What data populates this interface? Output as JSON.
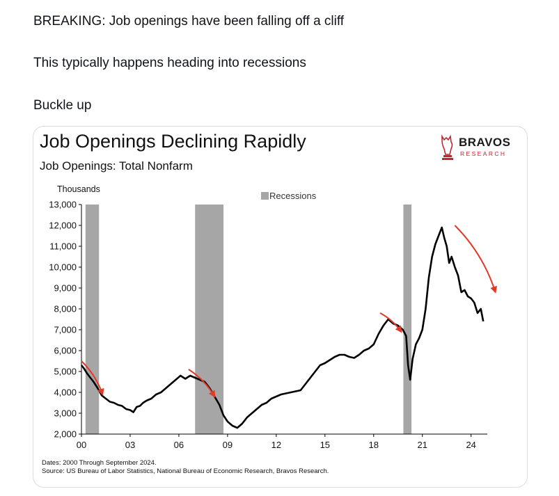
{
  "tweet": {
    "line1": "BREAKING: Job openings have been falling off a cliff",
    "line2": "This typically happens heading into recessions",
    "line3": "Buckle up"
  },
  "brand": {
    "name": "BRAVOS",
    "sub": "RESEARCH",
    "icon": "bull-chess-knight-icon",
    "color": "#c0262d"
  },
  "chart_data": {
    "type": "line",
    "title": "Job Openings Declining Rapidly",
    "subtitle": "Job Openings: Total Nonfarm",
    "ylabel": "Thousands",
    "ylim": [
      2000,
      13000
    ],
    "yticks": [
      2000,
      3000,
      4000,
      5000,
      6000,
      7000,
      8000,
      9000,
      10000,
      11000,
      12000,
      13000
    ],
    "ytick_labels": [
      "2,000",
      "3,000",
      "4,000",
      "5,000",
      "6,000",
      "7,000",
      "8,000",
      "9,000",
      "10,000",
      "11,000",
      "12,000",
      "13,000"
    ],
    "xlim": [
      2000.0,
      2025.0
    ],
    "xticks": [
      2000,
      2003,
      2006,
      2009,
      2012,
      2015,
      2018,
      2021,
      2024
    ],
    "xtick_labels": [
      "00",
      "03",
      "06",
      "09",
      "12",
      "15",
      "18",
      "21",
      "24"
    ],
    "legend": {
      "label": "Recessions",
      "placement": "top-center"
    },
    "recessions": [
      [
        2000.25,
        2001.08
      ],
      [
        2007.0,
        2008.75
      ],
      [
        2019.83,
        2020.33
      ]
    ],
    "series_color": "#000000",
    "arrow_color": "#e03a2a",
    "grid": false,
    "series": [
      {
        "points": [
          [
            2000.0,
            5300
          ],
          [
            2000.15,
            5150
          ],
          [
            2000.35,
            4900
          ],
          [
            2000.55,
            4700
          ],
          [
            2000.75,
            4500
          ],
          [
            2001.0,
            4200
          ],
          [
            2001.25,
            3850
          ],
          [
            2001.5,
            3700
          ],
          [
            2001.75,
            3550
          ],
          [
            2002.0,
            3500
          ],
          [
            2002.25,
            3400
          ],
          [
            2002.5,
            3350
          ],
          [
            2002.75,
            3200
          ],
          [
            2003.0,
            3150
          ],
          [
            2003.2,
            3050
          ],
          [
            2003.4,
            3300
          ],
          [
            2003.6,
            3350
          ],
          [
            2003.8,
            3500
          ],
          [
            2004.0,
            3600
          ],
          [
            2004.3,
            3700
          ],
          [
            2004.6,
            3900
          ],
          [
            2004.9,
            4000
          ],
          [
            2005.2,
            4200
          ],
          [
            2005.5,
            4400
          ],
          [
            2005.8,
            4600
          ],
          [
            2006.1,
            4800
          ],
          [
            2006.4,
            4650
          ],
          [
            2006.7,
            4800
          ],
          [
            2007.0,
            4700
          ],
          [
            2007.3,
            4600
          ],
          [
            2007.6,
            4500
          ],
          [
            2007.9,
            4200
          ],
          [
            2008.2,
            3800
          ],
          [
            2008.5,
            3400
          ],
          [
            2008.75,
            2900
          ],
          [
            2009.0,
            2600
          ],
          [
            2009.3,
            2400
          ],
          [
            2009.6,
            2300
          ],
          [
            2009.9,
            2500
          ],
          [
            2010.2,
            2800
          ],
          [
            2010.5,
            3000
          ],
          [
            2010.8,
            3200
          ],
          [
            2011.1,
            3400
          ],
          [
            2011.4,
            3500
          ],
          [
            2011.7,
            3700
          ],
          [
            2012.0,
            3800
          ],
          [
            2012.3,
            3900
          ],
          [
            2012.6,
            3950
          ],
          [
            2012.9,
            4000
          ],
          [
            2013.2,
            4050
          ],
          [
            2013.5,
            4100
          ],
          [
            2013.8,
            4400
          ],
          [
            2014.1,
            4700
          ],
          [
            2014.4,
            5000
          ],
          [
            2014.7,
            5300
          ],
          [
            2015.0,
            5400
          ],
          [
            2015.3,
            5550
          ],
          [
            2015.6,
            5700
          ],
          [
            2015.9,
            5800
          ],
          [
            2016.2,
            5800
          ],
          [
            2016.5,
            5700
          ],
          [
            2016.8,
            5650
          ],
          [
            2017.1,
            5800
          ],
          [
            2017.4,
            6000
          ],
          [
            2017.7,
            6100
          ],
          [
            2018.0,
            6300
          ],
          [
            2018.3,
            6800
          ],
          [
            2018.6,
            7200
          ],
          [
            2018.9,
            7500
          ],
          [
            2019.2,
            7300
          ],
          [
            2019.5,
            7200
          ],
          [
            2019.8,
            7000
          ],
          [
            2020.0,
            6700
          ],
          [
            2020.12,
            5300
          ],
          [
            2020.25,
            4600
          ],
          [
            2020.4,
            5600
          ],
          [
            2020.6,
            6300
          ],
          [
            2020.8,
            6600
          ],
          [
            2021.0,
            7000
          ],
          [
            2021.2,
            8000
          ],
          [
            2021.4,
            9500
          ],
          [
            2021.6,
            10500
          ],
          [
            2021.8,
            11100
          ],
          [
            2022.0,
            11500
          ],
          [
            2022.2,
            11900
          ],
          [
            2022.35,
            11400
          ],
          [
            2022.5,
            11000
          ],
          [
            2022.65,
            10200
          ],
          [
            2022.8,
            10500
          ],
          [
            2023.0,
            10000
          ],
          [
            2023.2,
            9600
          ],
          [
            2023.4,
            8800
          ],
          [
            2023.6,
            8900
          ],
          [
            2023.8,
            8600
          ],
          [
            2024.0,
            8500
          ],
          [
            2024.2,
            8300
          ],
          [
            2024.4,
            7800
          ],
          [
            2024.6,
            8000
          ],
          [
            2024.75,
            7400
          ]
        ]
      }
    ],
    "trend_arrows": [
      [
        [
          2000.0,
          5500
        ],
        [
          2001.3,
          3900
        ]
      ],
      [
        [
          2006.6,
          5100
        ],
        [
          2008.2,
          3800
        ]
      ],
      [
        [
          2018.4,
          7800
        ],
        [
          2019.7,
          6900
        ]
      ],
      [
        [
          2023.0,
          12000
        ],
        [
          2025.5,
          8800
        ]
      ]
    ],
    "notes": {
      "dates": "Dates: 2000 Through September 2024.",
      "source": "Source: US Bureau of Labor Statistics, National Bureau of Economic Research, Bravos Research."
    }
  }
}
